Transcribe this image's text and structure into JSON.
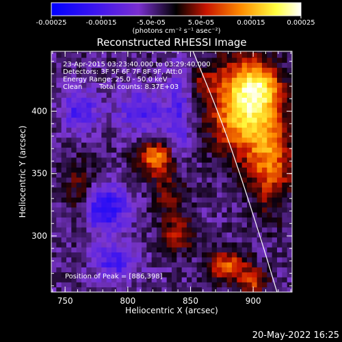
{
  "chart_data": {
    "type": "heatmap",
    "title": "Reconstructed RHESSI Image",
    "xlabel": "Heliocentric X (arcsec)",
    "ylabel": "Heliocentric Y (arcsec)",
    "xlim": [
      739,
      931
    ],
    "ylim": [
      255,
      448
    ],
    "x_ticks": [
      750,
      800,
      850,
      900
    ],
    "x_tick_labels": [
      "750",
      "800",
      "850",
      "900"
    ],
    "y_ticks": [
      300,
      350,
      400
    ],
    "y_tick_labels": [
      "300",
      "350",
      "400"
    ],
    "colorbar": {
      "range": [
        -0.00025,
        0.00025
      ],
      "ticks": [
        -0.00025,
        -0.00015,
        -5e-05,
        5e-05,
        0.00015,
        0.00025
      ],
      "tick_labels": [
        "-0.00025",
        "-0.00015",
        "-5.0e-05",
        "5.0e-05",
        "0.00015",
        "0.00025"
      ],
      "units_label": "(photons cm⁻² s⁻¹ asec⁻²)",
      "colors": [
        "#0000ff",
        "#7a2fd0",
        "#000000",
        "#c81400",
        "#ff8c00",
        "#ffff40",
        "#ffffff"
      ]
    },
    "annotations": [
      "23-Apr-2015 03:23:40.000 to 03:29:40.000",
      "Detectors: 3F 5F 6F 7F 8F 9F, Att:0",
      "Energy Range: 25.0 - 50.0 keV",
      "Clean",
      "Total counts: 8.37E+03",
      "Position of Peak = [886,398]"
    ],
    "peak": {
      "x": 886,
      "y": 398
    },
    "limb_curve": [
      [
        852,
        448
      ],
      [
        875,
        392
      ],
      [
        892,
        342
      ],
      [
        906,
        298
      ],
      [
        919,
        255
      ]
    ],
    "sources": [
      {
        "x": 892,
        "y": 404,
        "sx": 17,
        "sy": 26,
        "amp": 0.00023
      },
      {
        "x": 906,
        "y": 420,
        "sx": 11,
        "sy": 12,
        "amp": 0.00012
      },
      {
        "x": 914,
        "y": 360,
        "sx": 12,
        "sy": 26,
        "amp": 0.00014
      },
      {
        "x": 822,
        "y": 363,
        "sx": 10,
        "sy": 9,
        "amp": 0.00016
      },
      {
        "x": 833,
        "y": 336,
        "sx": 10,
        "sy": 14,
        "amp": 7e-05
      },
      {
        "x": 880,
        "y": 276,
        "sx": 11,
        "sy": 9,
        "amp": 0.00013
      },
      {
        "x": 900,
        "y": 264,
        "sx": 8,
        "sy": 7,
        "amp": 0.00011
      },
      {
        "x": 840,
        "y": 302,
        "sx": 9,
        "sy": 10,
        "amp": 0.0001
      },
      {
        "x": 762,
        "y": 335,
        "sx": 9,
        "sy": 18,
        "amp": 7e-05
      },
      {
        "x": 860,
        "y": 425,
        "sx": 7,
        "sy": 7,
        "amp": 6e-05
      },
      {
        "x": 781,
        "y": 322,
        "sx": 13,
        "sy": 12,
        "amp": -0.00015
      },
      {
        "x": 762,
        "y": 400,
        "sx": 10,
        "sy": 12,
        "amp": -0.0001
      },
      {
        "x": 812,
        "y": 400,
        "sx": 14,
        "sy": 12,
        "amp": -9e-05
      },
      {
        "x": 790,
        "y": 280,
        "sx": 12,
        "sy": 10,
        "amp": -0.0001
      },
      {
        "x": 840,
        "y": 395,
        "sx": 6,
        "sy": 28,
        "amp": -8e-05
      }
    ]
  },
  "timestamp": "20-May-2022 16:25"
}
